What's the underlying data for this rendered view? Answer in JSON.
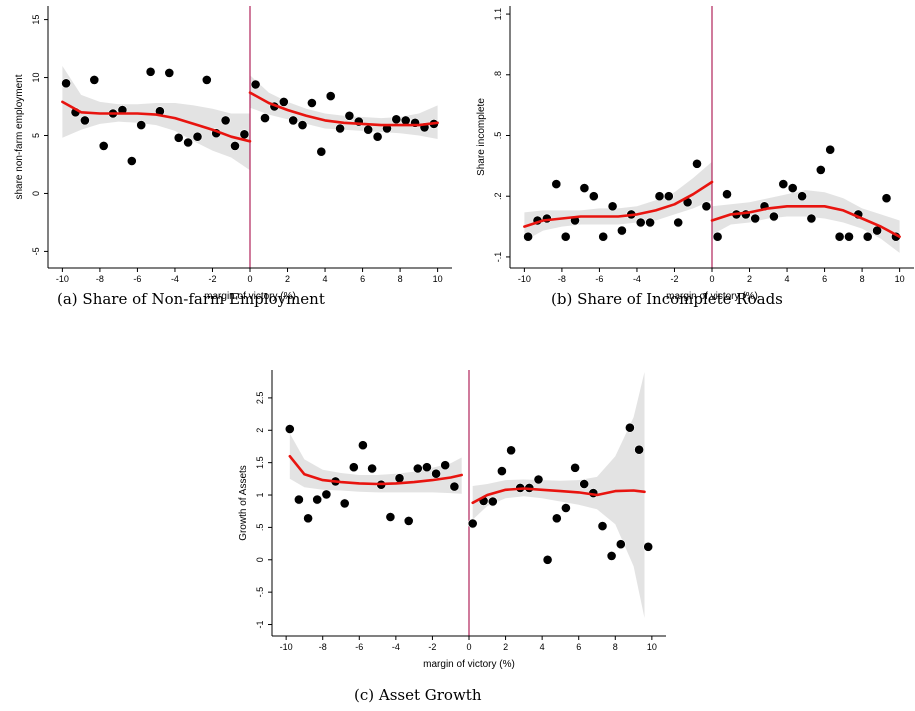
{
  "chart_data": [
    {
      "type": "scatter",
      "id": "a",
      "caption": "(a) Share of Non-farm Employment",
      "xlabel": "margin of victory (%)",
      "ylabel": "share non-farm employment",
      "xlim": [
        -10.5,
        10.5
      ],
      "ylim": [
        -6,
        16
      ],
      "xticks": [
        -10,
        -8,
        -6,
        -4,
        -2,
        0,
        2,
        4,
        6,
        8,
        10
      ],
      "xtick_labels": [
        "-10",
        "-8",
        "-6",
        "-4",
        "-2",
        "0",
        "2",
        "4",
        "6",
        "8",
        "10"
      ],
      "yticks": [
        -5,
        0,
        5,
        10,
        15
      ],
      "ytick_labels": [
        "-5",
        "0",
        "5",
        "10",
        "15"
      ],
      "cutoff": 0,
      "points": [
        [
          -9.8,
          9.5
        ],
        [
          -9.3,
          7.0
        ],
        [
          -8.8,
          6.3
        ],
        [
          -8.3,
          9.8
        ],
        [
          -7.8,
          4.1
        ],
        [
          -7.3,
          6.9
        ],
        [
          -6.8,
          7.2
        ],
        [
          -6.3,
          2.8
        ],
        [
          -5.8,
          5.9
        ],
        [
          -5.3,
          10.5
        ],
        [
          -4.8,
          7.1
        ],
        [
          -4.3,
          10.4
        ],
        [
          -3.8,
          4.8
        ],
        [
          -3.3,
          4.4
        ],
        [
          -2.8,
          4.9
        ],
        [
          -2.3,
          9.8
        ],
        [
          -1.8,
          5.2
        ],
        [
          -1.3,
          6.3
        ],
        [
          -0.8,
          4.1
        ],
        [
          -0.3,
          5.1
        ],
        [
          0.3,
          9.4
        ],
        [
          0.8,
          6.5
        ],
        [
          1.3,
          7.5
        ],
        [
          1.8,
          7.9
        ],
        [
          2.3,
          6.3
        ],
        [
          2.8,
          5.9
        ],
        [
          3.3,
          7.8
        ],
        [
          3.8,
          3.6
        ],
        [
          4.3,
          8.4
        ],
        [
          4.8,
          5.6
        ],
        [
          5.3,
          6.7
        ],
        [
          5.8,
          6.2
        ],
        [
          6.3,
          5.5
        ],
        [
          6.8,
          4.9
        ],
        [
          7.3,
          5.6
        ],
        [
          7.8,
          6.4
        ],
        [
          8.3,
          6.3
        ],
        [
          8.8,
          6.1
        ],
        [
          9.3,
          5.7
        ],
        [
          9.8,
          6.0
        ]
      ],
      "fit_left": [
        [
          -10,
          7.9
        ],
        [
          -9,
          7.0
        ],
        [
          -8,
          6.9
        ],
        [
          -7,
          6.9
        ],
        [
          -6,
          6.9
        ],
        [
          -5,
          6.8
        ],
        [
          -4,
          6.5
        ],
        [
          -3,
          6.0
        ],
        [
          -2,
          5.5
        ],
        [
          -1,
          4.9
        ],
        [
          0,
          4.5
        ]
      ],
      "band_left": [
        [
          -10,
          4.8,
          11.0
        ],
        [
          -9,
          5.5,
          8.5
        ],
        [
          -8,
          6.0,
          7.9
        ],
        [
          -7,
          6.2,
          7.7
        ],
        [
          -6,
          6.1,
          7.7
        ],
        [
          -5,
          5.9,
          7.8
        ],
        [
          -4,
          5.4,
          7.8
        ],
        [
          -3,
          4.5,
          7.6
        ],
        [
          -2,
          3.7,
          7.3
        ],
        [
          -1,
          3.1,
          6.9
        ],
        [
          0,
          2.0,
          6.9
        ]
      ],
      "fit_right": [
        [
          0,
          8.7
        ],
        [
          1,
          7.8
        ],
        [
          2,
          7.2
        ],
        [
          3,
          6.7
        ],
        [
          4,
          6.3
        ],
        [
          5,
          6.1
        ],
        [
          6,
          6.0
        ],
        [
          7,
          5.9
        ],
        [
          8,
          5.9
        ],
        [
          9,
          5.9
        ],
        [
          10,
          6.1
        ]
      ],
      "band_right": [
        [
          0,
          7.4,
          10.2
        ],
        [
          1,
          6.8,
          8.7
        ],
        [
          2,
          6.4,
          7.9
        ],
        [
          3,
          6.0,
          7.3
        ],
        [
          4,
          5.6,
          6.9
        ],
        [
          5,
          5.5,
          6.7
        ],
        [
          6,
          5.4,
          6.6
        ],
        [
          7,
          5.3,
          6.5
        ],
        [
          8,
          5.2,
          6.6
        ],
        [
          9,
          5.0,
          6.9
        ],
        [
          10,
          4.7,
          7.6
        ]
      ]
    },
    {
      "type": "scatter",
      "id": "b",
      "caption": "(b) Share of Incomplete Roads",
      "xlabel": "margin of victory (%)",
      "ylabel": "Share incomplete",
      "xlim": [
        -10.5,
        10.5
      ],
      "ylim": [
        -0.13,
        1.13
      ],
      "xticks": [
        -10,
        -8,
        -6,
        -4,
        -2,
        0,
        2,
        4,
        6,
        8,
        10
      ],
      "xtick_labels": [
        "-10",
        "-8",
        "-6",
        "-4",
        "-2",
        "0",
        "2",
        "4",
        "6",
        "8",
        "10"
      ],
      "yticks": [
        -0.1,
        0.2,
        0.5,
        0.8,
        1.1
      ],
      "ytick_labels": [
        "-.1",
        ".2",
        ".5",
        ".8",
        "1.1"
      ],
      "cutoff": 0,
      "points": [
        [
          -9.8,
          0.0
        ],
        [
          -9.3,
          0.08
        ],
        [
          -8.8,
          0.09
        ],
        [
          -8.3,
          0.26
        ],
        [
          -7.8,
          0.0
        ],
        [
          -7.3,
          0.08
        ],
        [
          -6.8,
          0.24
        ],
        [
          -6.3,
          0.2
        ],
        [
          -5.8,
          0.0
        ],
        [
          -5.3,
          0.15
        ],
        [
          -4.8,
          0.03
        ],
        [
          -4.3,
          0.11
        ],
        [
          -3.8,
          0.07
        ],
        [
          -3.3,
          0.07
        ],
        [
          -2.8,
          0.2
        ],
        [
          -2.3,
          0.2
        ],
        [
          -1.8,
          0.07
        ],
        [
          -1.3,
          0.17
        ],
        [
          -0.8,
          0.36
        ],
        [
          -0.3,
          0.15
        ],
        [
          0.3,
          0.0
        ],
        [
          0.8,
          0.21
        ],
        [
          1.3,
          0.11
        ],
        [
          1.8,
          0.11
        ],
        [
          2.3,
          0.09
        ],
        [
          2.8,
          0.15
        ],
        [
          3.3,
          0.1
        ],
        [
          3.8,
          0.26
        ],
        [
          4.3,
          0.24
        ],
        [
          4.8,
          0.2
        ],
        [
          5.3,
          0.09
        ],
        [
          5.8,
          0.33
        ],
        [
          6.3,
          0.43
        ],
        [
          6.8,
          0.0
        ],
        [
          7.3,
          0.0
        ],
        [
          7.8,
          0.11
        ],
        [
          8.3,
          0.0
        ],
        [
          8.8,
          0.03
        ],
        [
          9.3,
          0.19
        ],
        [
          9.8,
          0.0
        ]
      ],
      "fit_left": [
        [
          -10,
          0.05
        ],
        [
          -9,
          0.08
        ],
        [
          -8,
          0.09
        ],
        [
          -7,
          0.1
        ],
        [
          -6,
          0.1
        ],
        [
          -5,
          0.1
        ],
        [
          -4,
          0.11
        ],
        [
          -3,
          0.13
        ],
        [
          -2,
          0.16
        ],
        [
          -1,
          0.21
        ],
        [
          0,
          0.27
        ]
      ],
      "band_left": [
        [
          -10,
          -0.02,
          0.12
        ],
        [
          -9,
          0.03,
          0.13
        ],
        [
          -8,
          0.05,
          0.13
        ],
        [
          -7,
          0.06,
          0.13
        ],
        [
          -6,
          0.06,
          0.14
        ],
        [
          -5,
          0.06,
          0.14
        ],
        [
          -4,
          0.07,
          0.15
        ],
        [
          -3,
          0.08,
          0.18
        ],
        [
          -2,
          0.11,
          0.22
        ],
        [
          -1,
          0.14,
          0.29
        ],
        [
          0,
          0.18,
          0.37
        ]
      ],
      "fit_right": [
        [
          0,
          0.08
        ],
        [
          1,
          0.11
        ],
        [
          2,
          0.12
        ],
        [
          3,
          0.14
        ],
        [
          4,
          0.15
        ],
        [
          5,
          0.15
        ],
        [
          6,
          0.15
        ],
        [
          7,
          0.13
        ],
        [
          8,
          0.09
        ],
        [
          9,
          0.05
        ],
        [
          10,
          0.0
        ]
      ],
      "band_right": [
        [
          0,
          0.01,
          0.15
        ],
        [
          1,
          0.06,
          0.16
        ],
        [
          2,
          0.07,
          0.17
        ],
        [
          3,
          0.09,
          0.19
        ],
        [
          4,
          0.1,
          0.21
        ],
        [
          5,
          0.1,
          0.23
        ],
        [
          6,
          0.09,
          0.22
        ],
        [
          7,
          0.07,
          0.19
        ],
        [
          8,
          0.04,
          0.14
        ],
        [
          9,
          -0.01,
          0.11
        ],
        [
          10,
          -0.08,
          0.08
        ]
      ]
    },
    {
      "type": "scatter",
      "id": "c",
      "caption": "(c) Asset Growth",
      "xlabel": "margin of victory (%)",
      "ylabel": "Growth of Assets",
      "xlim": [
        -10.5,
        10.5
      ],
      "ylim": [
        -1.1,
        2.9
      ],
      "xticks": [
        -10,
        -8,
        -6,
        -4,
        -2,
        0,
        2,
        4,
        6,
        8,
        10
      ],
      "xtick_labels": [
        "-10",
        "-8",
        "-6",
        "-4",
        "-2",
        "0",
        "2",
        "4",
        "6",
        "8",
        "10"
      ],
      "yticks": [
        -1,
        -0.5,
        0,
        0.5,
        1,
        1.5,
        2,
        2.5
      ],
      "ytick_labels": [
        "-1",
        "-.5",
        "0",
        ".5",
        "1",
        "1.5",
        "2",
        "2.5"
      ],
      "cutoff": 0,
      "points": [
        [
          -9.8,
          2.02
        ],
        [
          -9.3,
          0.93
        ],
        [
          -8.8,
          0.64
        ],
        [
          -8.3,
          0.93
        ],
        [
          -7.8,
          1.01
        ],
        [
          -7.3,
          1.21
        ],
        [
          -6.8,
          0.87
        ],
        [
          -6.3,
          1.43
        ],
        [
          -5.8,
          1.77
        ],
        [
          -5.3,
          1.41
        ],
        [
          -4.8,
          1.16
        ],
        [
          -4.3,
          0.66
        ],
        [
          -3.8,
          1.26
        ],
        [
          -3.3,
          0.6
        ],
        [
          -2.8,
          1.41
        ],
        [
          -2.3,
          1.43
        ],
        [
          -1.8,
          1.33
        ],
        [
          -1.3,
          1.46
        ],
        [
          -0.8,
          1.13
        ],
        [
          0.2,
          0.56
        ],
        [
          0.8,
          0.91
        ],
        [
          1.3,
          0.9
        ],
        [
          1.8,
          1.37
        ],
        [
          2.3,
          1.69
        ],
        [
          2.8,
          1.11
        ],
        [
          3.3,
          1.11
        ],
        [
          3.8,
          1.24
        ],
        [
          4.3,
          0.0
        ],
        [
          4.8,
          0.64
        ],
        [
          5.3,
          0.8
        ],
        [
          5.8,
          1.42
        ],
        [
          6.3,
          1.17
        ],
        [
          6.8,
          1.03
        ],
        [
          7.3,
          0.52
        ],
        [
          7.8,
          0.06
        ],
        [
          8.3,
          0.24
        ],
        [
          8.8,
          2.04
        ],
        [
          9.3,
          1.7
        ],
        [
          9.8,
          0.2
        ]
      ],
      "fit_left": [
        [
          -9.8,
          1.6
        ],
        [
          -9,
          1.32
        ],
        [
          -8,
          1.23
        ],
        [
          -7,
          1.2
        ],
        [
          -6,
          1.18
        ],
        [
          -5,
          1.17
        ],
        [
          -4,
          1.18
        ],
        [
          -3,
          1.2
        ],
        [
          -2,
          1.23
        ],
        [
          -1,
          1.27
        ],
        [
          -0.4,
          1.31
        ]
      ],
      "band_left": [
        [
          -9.8,
          1.25,
          1.95
        ],
        [
          -9,
          1.12,
          1.55
        ],
        [
          -8,
          1.08,
          1.39
        ],
        [
          -7,
          1.07,
          1.34
        ],
        [
          -6,
          1.05,
          1.31
        ],
        [
          -5,
          1.04,
          1.31
        ],
        [
          -4,
          1.04,
          1.33
        ],
        [
          -3,
          1.04,
          1.36
        ],
        [
          -2,
          1.04,
          1.42
        ],
        [
          -1,
          1.03,
          1.49
        ],
        [
          -0.4,
          1.02,
          1.58
        ]
      ],
      "fit_right": [
        [
          0.2,
          0.88
        ],
        [
          1,
          1.0
        ],
        [
          2,
          1.08
        ],
        [
          3,
          1.1
        ],
        [
          4,
          1.08
        ],
        [
          5,
          1.06
        ],
        [
          6,
          1.04
        ],
        [
          7,
          1.0
        ],
        [
          8,
          1.06
        ],
        [
          9,
          1.07
        ],
        [
          9.6,
          1.05
        ]
      ],
      "band_right": [
        [
          0.2,
          0.62,
          1.14
        ],
        [
          1,
          0.83,
          1.17
        ],
        [
          2,
          0.95,
          1.23
        ],
        [
          3,
          0.98,
          1.24
        ],
        [
          4,
          0.95,
          1.23
        ],
        [
          5,
          0.9,
          1.22
        ],
        [
          6,
          0.85,
          1.23
        ],
        [
          7,
          0.78,
          1.28
        ],
        [
          8,
          0.55,
          1.6
        ],
        [
          9,
          -0.1,
          2.2
        ],
        [
          9.6,
          -0.9,
          2.9
        ]
      ]
    }
  ]
}
